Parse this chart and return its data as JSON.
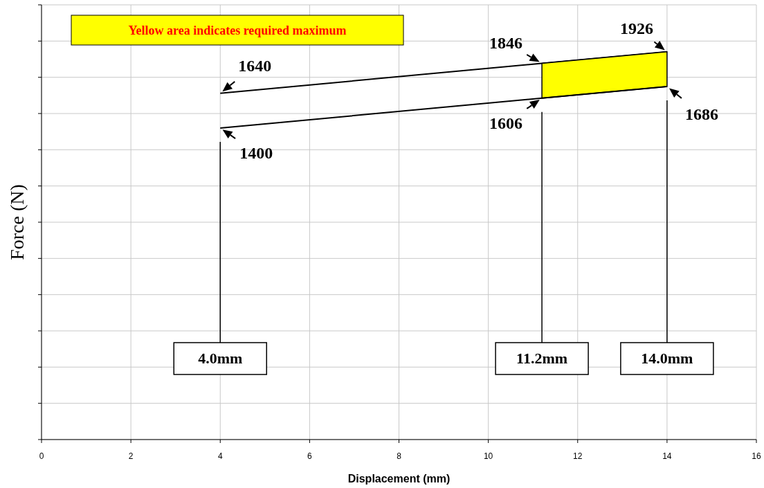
{
  "chart_data": {
    "type": "line",
    "xlabel": "Displacement (mm)",
    "ylabel": "Force (N)",
    "xlim": [
      0,
      16
    ],
    "xticks": [
      0,
      2,
      4,
      6,
      8,
      10,
      12,
      14,
      16
    ],
    "ylim": [
      -750,
      2250
    ],
    "yticks": [
      {
        "value": -750,
        "label": null
      },
      {
        "value": -500,
        "label": null
      },
      {
        "value": -250,
        "label": null
      },
      {
        "value": 0,
        "label": null
      },
      {
        "value": 250,
        "label": null
      },
      {
        "value": 500,
        "label": null
      },
      {
        "value": 750,
        "label": null
      },
      {
        "value": 1000,
        "label": null
      },
      {
        "value": 1250,
        "label": null
      },
      {
        "value": 1500,
        "label": null
      },
      {
        "value": 1750,
        "label": null
      },
      {
        "value": 2000,
        "label": null
      },
      {
        "value": 2250,
        "label": null
      }
    ],
    "tick_labels": "x",
    "grid": true,
    "series": [
      {
        "color": "#000000",
        "x": [
          4,
          11.2,
          14
        ],
        "values": [
          1640,
          1846,
          1926
        ],
        "value_labels": [
          "1640",
          "1846",
          "1926"
        ]
      },
      {
        "color": "#000000",
        "x": [
          4,
          11.2,
          14
        ],
        "values": [
          1400,
          1606,
          1686
        ],
        "value_labels": [
          "1400",
          "1606",
          "1686"
        ],
        "lower": [
          null,
          1606,
          1686
        ],
        "upper": [
          null,
          1846,
          1926
        ]
      }
    ],
    "ref_lines": [
      {
        "axis": "x",
        "value": 4,
        "label": "4.0mm"
      },
      {
        "axis": "x",
        "value": 11.2,
        "label": "11.2mm"
      },
      {
        "axis": "x",
        "value": 14,
        "label": "14.0mm"
      }
    ],
    "annotations": [
      "Yellow area indicates required maximum"
    ]
  }
}
